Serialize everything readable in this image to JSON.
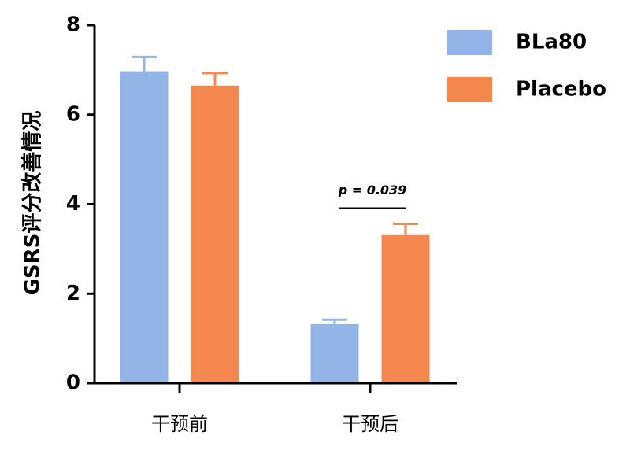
{
  "chart_data": {
    "type": "bar",
    "y_label": "GSRS评分改善情况",
    "categories": [
      "干预前",
      "干预后"
    ],
    "series": [
      {
        "name": "BLa80",
        "color": "#92b4e6",
        "values": [
          6.97,
          1.32
        ],
        "errors": [
          0.32,
          0.1
        ]
      },
      {
        "name": "Placebo",
        "color": "#f5884e",
        "values": [
          6.65,
          3.31
        ],
        "errors": [
          0.28,
          0.25
        ]
      }
    ],
    "ylim": [
      0,
      8
    ],
    "yticks": [
      0,
      2,
      4,
      6,
      8
    ],
    "annotations": [
      {
        "text": "p = 0.039",
        "category": 1
      }
    ],
    "legend": "top-right"
  }
}
